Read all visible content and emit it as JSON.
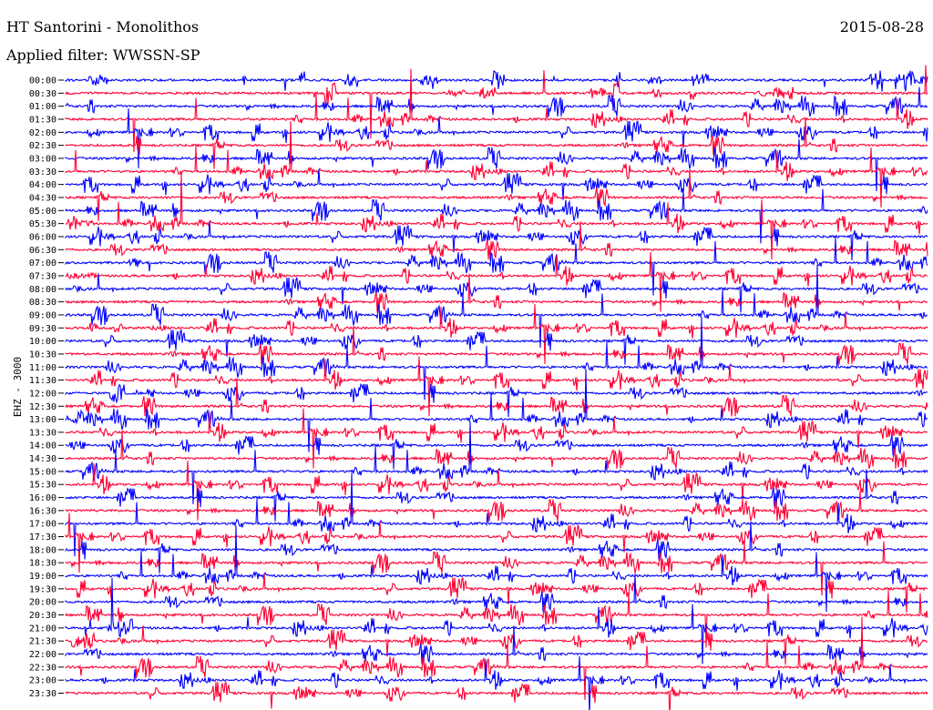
{
  "header": {
    "station": "HT Santorini - Monolithos",
    "date": "2015-08-28",
    "filter": "Applied filter: WWSSN-SP",
    "channel": "EHZ - 3000"
  },
  "chart_data": {
    "type": "line",
    "title": "HT Santorini - Monolithos",
    "date": "2015-08-28",
    "ylabel": "EHZ - 3000",
    "grid": false,
    "colors": {
      "hour": "#0000ff",
      "half_hour": "#ff0033"
    },
    "row_labels": [
      "00:00",
      "00:30",
      "01:00",
      "01:30",
      "02:00",
      "02:30",
      "03:00",
      "03:30",
      "04:00",
      "04:30",
      "05:00",
      "05:30",
      "06:00",
      "06:30",
      "07:00",
      "07:30",
      "08:00",
      "08:30",
      "09:00",
      "09:30",
      "10:00",
      "10:30",
      "11:00",
      "11:30",
      "12:00",
      "12:30",
      "13:00",
      "13:30",
      "14:00",
      "14:30",
      "15:00",
      "15:30",
      "16:00",
      "16:30",
      "17:00",
      "17:30",
      "18:00",
      "18:30",
      "19:00",
      "19:30",
      "20:00",
      "20:30",
      "21:00",
      "21:30",
      "22:00",
      "22:30",
      "23:00",
      "23:30"
    ]
  }
}
